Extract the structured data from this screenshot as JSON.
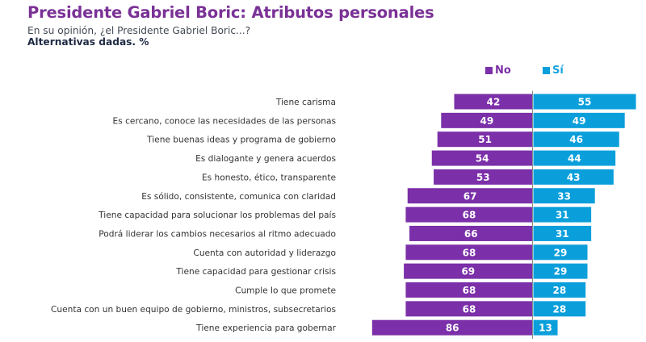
{
  "header": {
    "title": "Presidente Gabriel Boric: Atributos personales",
    "subtitle": "En su opinión, ¿el Presidente Gabriel Boric...?",
    "note": "Alternativas dadas. %"
  },
  "colors": {
    "no": "#7b2fa8",
    "si": "#0a9fdb",
    "title": "#7a3196"
  },
  "chart_data": {
    "type": "bar",
    "orientation": "horizontal-diverging",
    "title": "Presidente Gabriel Boric: Atributos personales",
    "subtitle": "En su opinión, ¿el Presidente Gabriel Boric...?",
    "unit": "%",
    "legend_position": "top-right",
    "grid": false,
    "categories": [
      "Tiene carisma",
      "Es cercano, conoce las necesidades de las personas",
      "Tiene buenas ideas y programa de gobierno",
      "Es dialogante y genera acuerdos",
      "Es honesto, ético, transparente",
      "Es sólido, consistente, comunica con claridad",
      "Tiene capacidad para solucionar los problemas del país",
      "Podrá liderar los cambios necesarios al ritmo adecuado",
      "Cuenta con autoridad y liderazgo",
      "Tiene capacidad para gestionar crisis",
      "Cumple lo que promete",
      "Cuenta con un buen equipo de gobierno, ministros, subsecretarios",
      "Tiene experiencia para gobernar"
    ],
    "series": [
      {
        "name": "No",
        "direction": "left",
        "values": [
          42,
          49,
          51,
          54,
          53,
          67,
          68,
          66,
          68,
          69,
          68,
          68,
          86
        ]
      },
      {
        "name": "Sí",
        "direction": "right",
        "values": [
          55,
          49,
          46,
          44,
          43,
          33,
          31,
          31,
          29,
          29,
          28,
          28,
          13
        ]
      }
    ],
    "xlim": [
      -100,
      100
    ]
  }
}
